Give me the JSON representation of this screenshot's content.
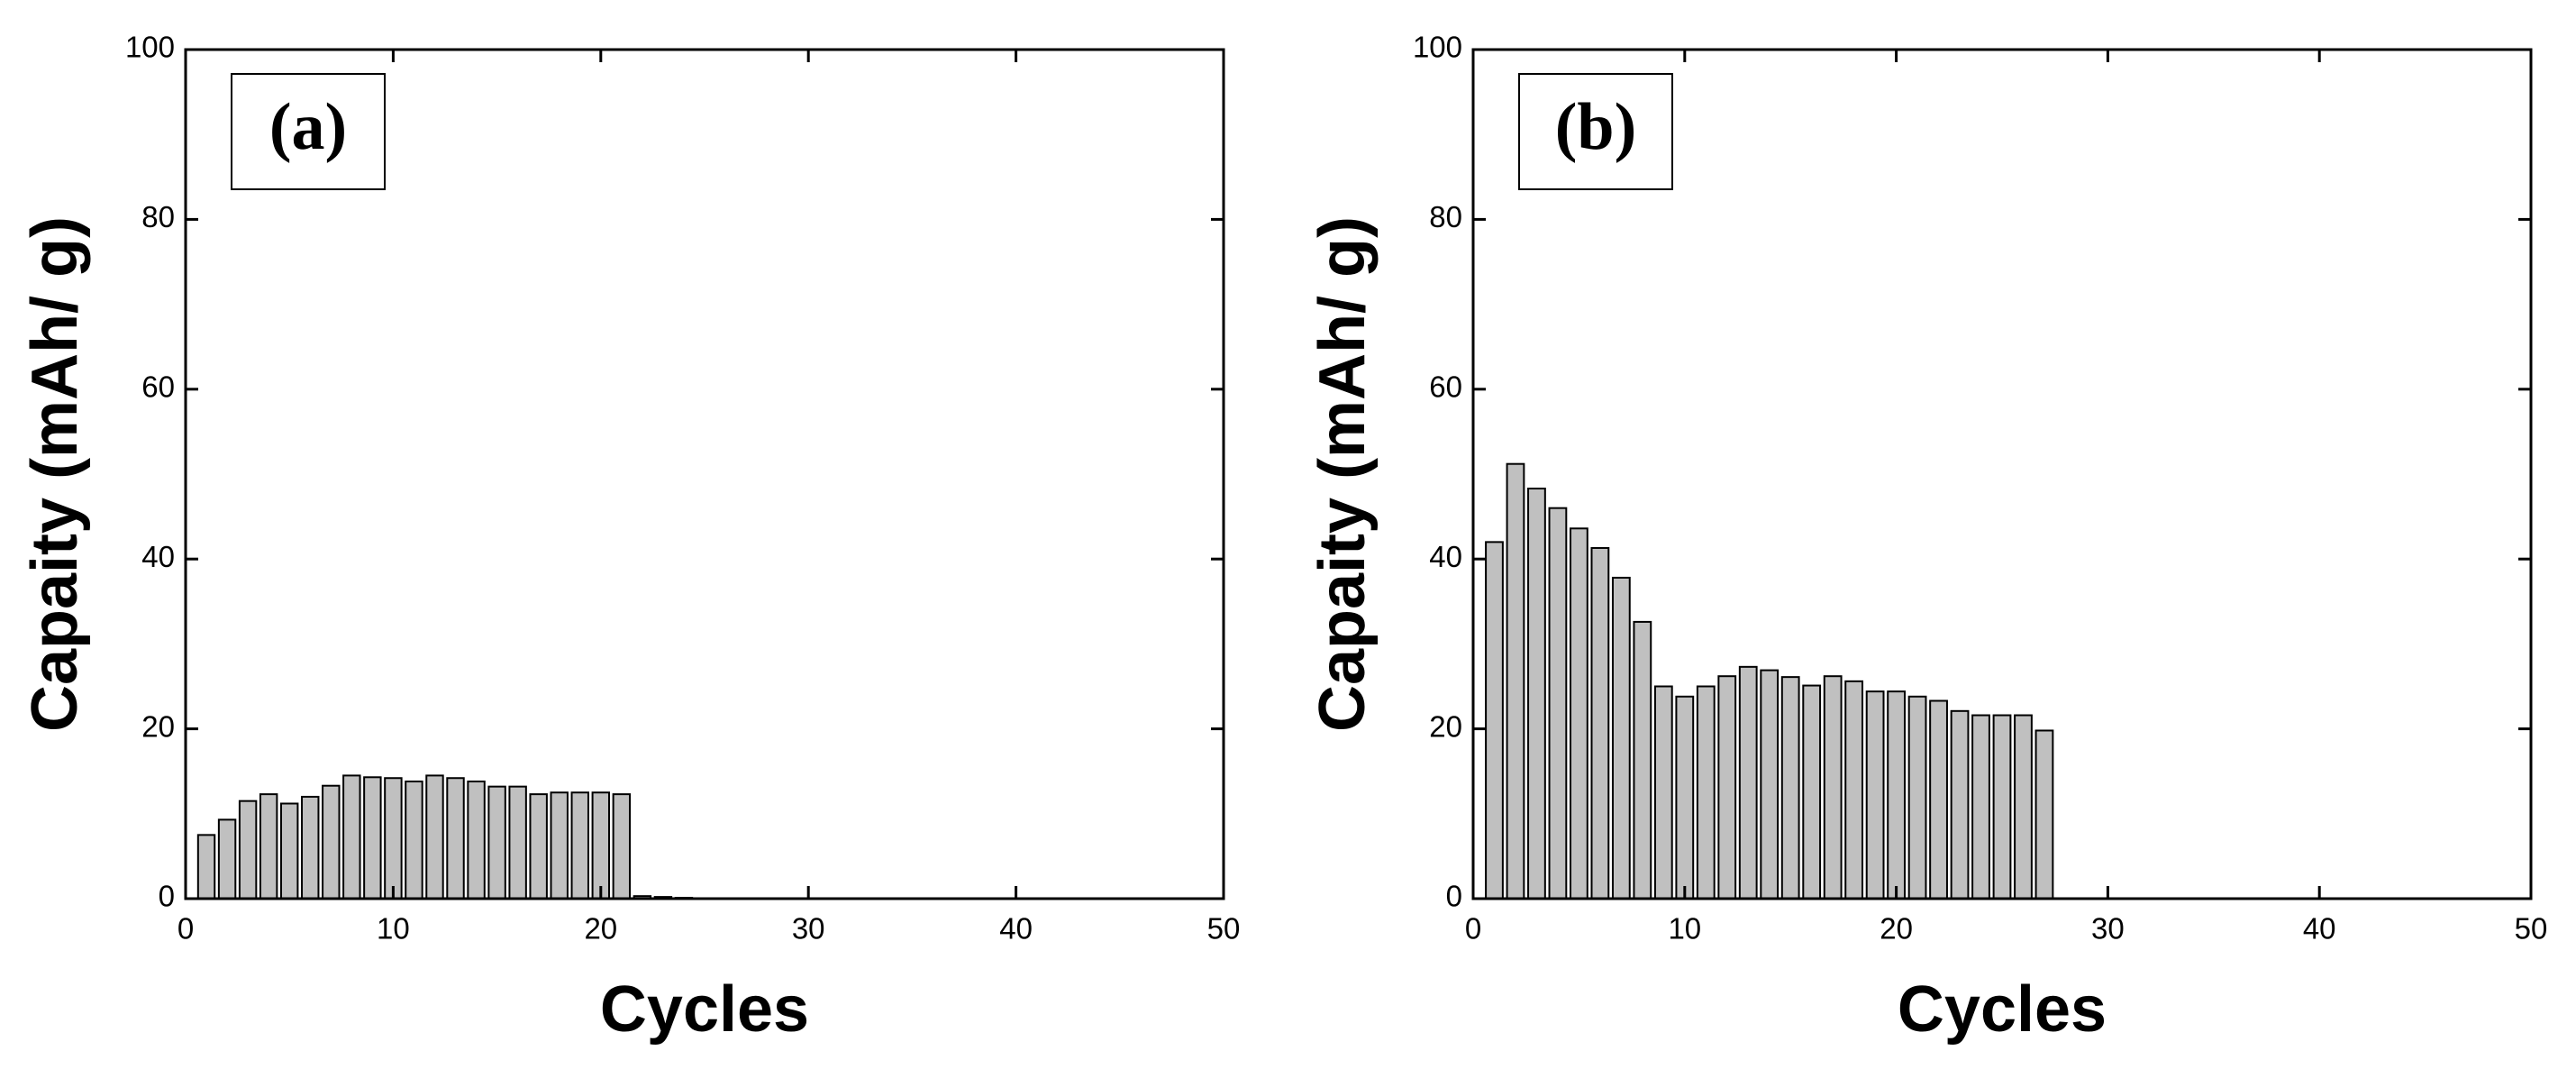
{
  "chart_data": [
    {
      "type": "bar",
      "annotation": "(a)",
      "xlabel": "Cycles",
      "ylabel": "Capaity (mAh/ g)",
      "x": [
        1,
        2,
        3,
        4,
        5,
        6,
        7,
        8,
        9,
        10,
        11,
        12,
        13,
        14,
        15,
        16,
        17,
        18,
        19,
        20,
        21,
        22,
        23,
        24
      ],
      "values": [
        7.5,
        9.3,
        11.5,
        12.3,
        11.2,
        12,
        13.3,
        14.5,
        14.3,
        14.2,
        13.8,
        14.5,
        14.2,
        13.8,
        13.2,
        13.2,
        12.3,
        12.5,
        12.5,
        12.5,
        12.3,
        0.3,
        0.2,
        0.1
      ],
      "color": "#c0c0c0",
      "xlim": [
        0,
        50
      ],
      "xticks": [
        0,
        10,
        20,
        30,
        40,
        50
      ],
      "ylim": [
        0,
        100
      ],
      "yticks": [
        0,
        20,
        40,
        60,
        80,
        100
      ]
    },
    {
      "type": "bar",
      "annotation": "(b)",
      "xlabel": "Cycles",
      "ylabel": "Capaity (mAh/ g)",
      "x": [
        1,
        2,
        3,
        4,
        5,
        6,
        7,
        8,
        9,
        10,
        11,
        12,
        13,
        14,
        15,
        16,
        17,
        18,
        19,
        20,
        21,
        22,
        23,
        24,
        25,
        26,
        27
      ],
      "values": [
        42,
        51.2,
        48.3,
        46,
        43.6,
        41.3,
        37.8,
        32.6,
        25,
        23.8,
        25,
        26.2,
        27.3,
        26.9,
        26.1,
        25.1,
        26.2,
        25.6,
        24.4,
        24.4,
        23.8,
        23.3,
        22.1,
        21.6,
        21.6,
        21.6,
        19.8
      ],
      "color": "#c0c0c0",
      "xlim": [
        0,
        50
      ],
      "xticks": [
        0,
        10,
        20,
        30,
        40,
        50
      ],
      "ylim": [
        0,
        100
      ],
      "yticks": [
        0,
        20,
        40,
        60,
        80,
        100
      ]
    }
  ]
}
